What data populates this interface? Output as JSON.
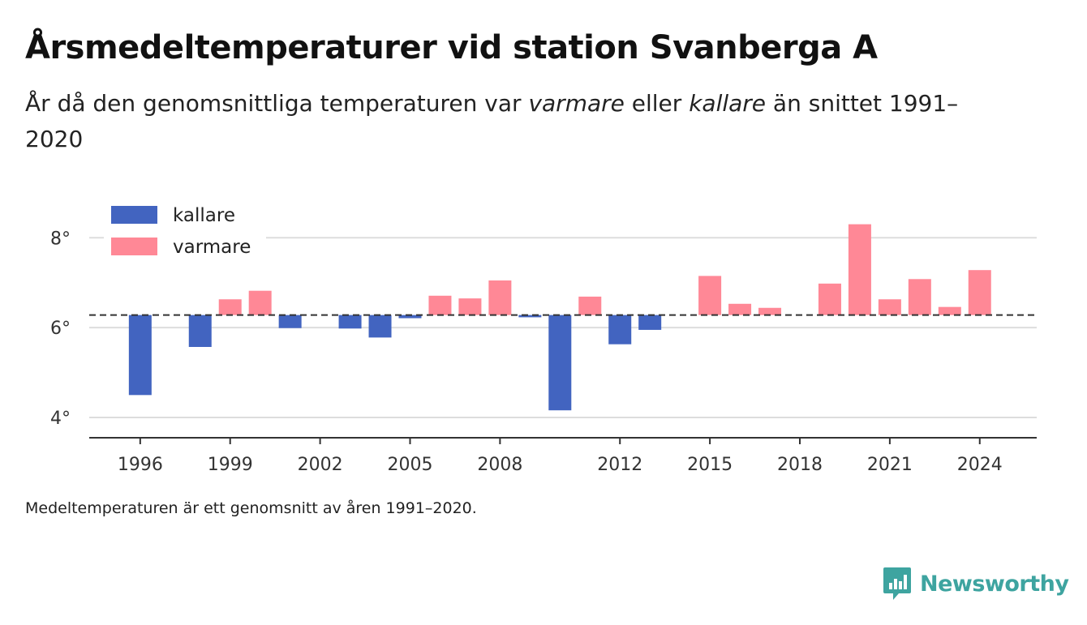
{
  "title": "Årsmedeltemperaturer vid station Svanberga A",
  "subtitle": {
    "part1": "År då den genomsnittliga temperaturen var ",
    "em1": "varmare",
    "part2": " eller ",
    "em2": "kallare",
    "part3": " än snittet 1991–2020"
  },
  "footnote": "Medeltemperaturen är ett genomsnitt av åren 1991–2020.",
  "brand": {
    "name": "Newsworthy",
    "icon": "newsworthy-logo-icon"
  },
  "colors": {
    "kallare": "#4264c0",
    "varmare": "#ff8896",
    "brand": "#3ea4a0",
    "grid": "#dddddd",
    "reference": "#333333"
  },
  "chart_data": {
    "type": "bar",
    "baseline": 6.28,
    "baseline_style": "dashed",
    "ylim": [
      3.55,
      8.6
    ],
    "xlim": [
      1994.3,
      2025.9
    ],
    "grid": true,
    "legend": {
      "position": "top-left",
      "entries": [
        "kallare",
        "varmare"
      ]
    },
    "y_ticks": [
      {
        "value": 4,
        "label": "4°"
      },
      {
        "value": 6,
        "label": "6°"
      },
      {
        "value": 8,
        "label": "8°"
      }
    ],
    "x_ticks": [
      {
        "value": 1996,
        "label": "1996"
      },
      {
        "value": 1999,
        "label": "1999"
      },
      {
        "value": 2002,
        "label": "2002"
      },
      {
        "value": 2005,
        "label": "2005"
      },
      {
        "value": 2008,
        "label": "2008"
      },
      {
        "value": 2012,
        "label": "2012"
      },
      {
        "value": 2015,
        "label": "2015"
      },
      {
        "value": 2018,
        "label": "2018"
      },
      {
        "value": 2021,
        "label": "2021"
      },
      {
        "value": 2024,
        "label": "2024"
      }
    ],
    "series": [
      {
        "name": "kallare",
        "data": [
          {
            "year": 1996,
            "value": 4.5
          },
          {
            "year": 1998,
            "value": 5.57
          },
          {
            "year": 2001,
            "value": 5.99
          },
          {
            "year": 2003,
            "value": 5.98
          },
          {
            "year": 2004,
            "value": 5.78
          },
          {
            "year": 2005,
            "value": 6.21
          },
          {
            "year": 2009,
            "value": 6.23
          },
          {
            "year": 2010,
            "value": 4.16
          },
          {
            "year": 2012,
            "value": 5.63
          },
          {
            "year": 2013,
            "value": 5.95
          }
        ]
      },
      {
        "name": "varmare",
        "data": [
          {
            "year": 1999,
            "value": 6.63
          },
          {
            "year": 2000,
            "value": 6.82
          },
          {
            "year": 2006,
            "value": 6.71
          },
          {
            "year": 2007,
            "value": 6.65
          },
          {
            "year": 2008,
            "value": 7.05
          },
          {
            "year": 2011,
            "value": 6.69
          },
          {
            "year": 2015,
            "value": 7.15
          },
          {
            "year": 2016,
            "value": 6.53
          },
          {
            "year": 2017,
            "value": 6.44
          },
          {
            "year": 2019,
            "value": 6.98
          },
          {
            "year": 2020,
            "value": 8.3
          },
          {
            "year": 2021,
            "value": 6.63
          },
          {
            "year": 2022,
            "value": 7.08
          },
          {
            "year": 2023,
            "value": 6.46
          },
          {
            "year": 2024,
            "value": 7.28
          }
        ]
      }
    ]
  }
}
